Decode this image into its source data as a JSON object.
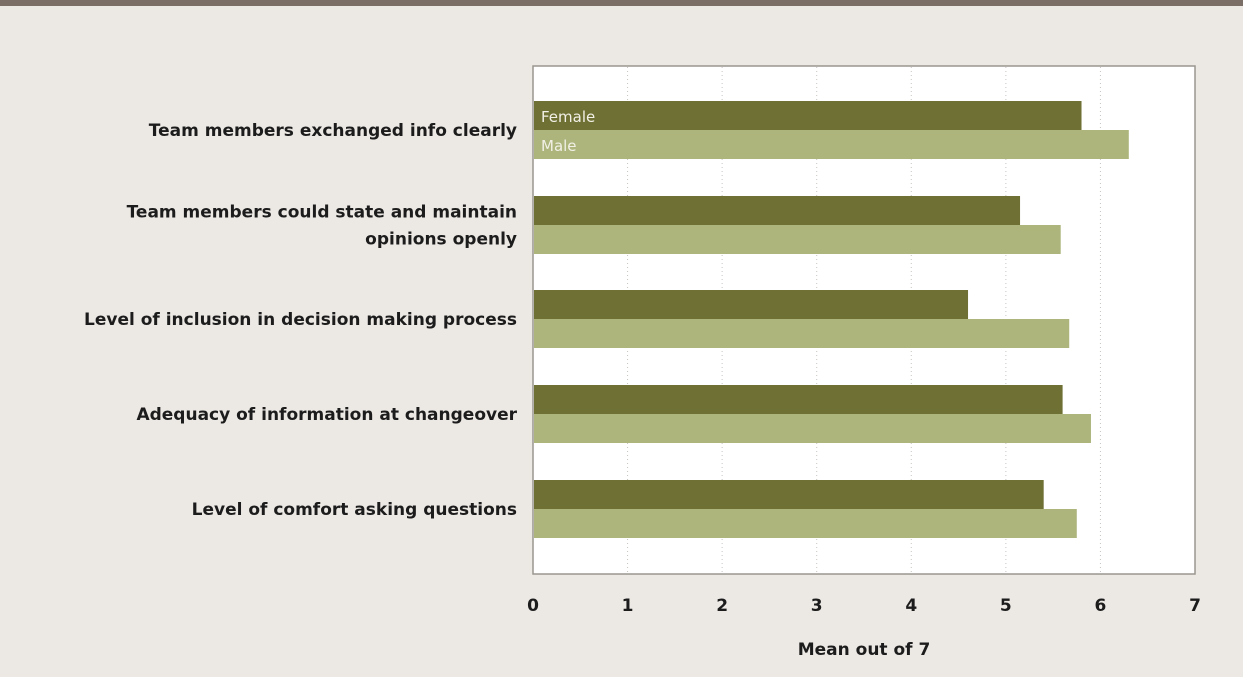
{
  "chart_data": {
    "type": "bar",
    "orientation": "horizontal",
    "categories": [
      [
        "Team members exchanged info clearly"
      ],
      [
        "Team members could state and maintain",
        "opinions openly"
      ],
      [
        "Level of inclusion in decision making process"
      ],
      [
        "Adequacy of information at changeover"
      ],
      [
        "Level of comfort asking questions"
      ]
    ],
    "series": [
      {
        "name": "Female",
        "color": "#6e7034",
        "values": [
          5.8,
          5.15,
          4.6,
          5.6,
          5.4
        ]
      },
      {
        "name": "Male",
        "color": "#adb57c",
        "values": [
          6.3,
          5.58,
          5.67,
          5.9,
          5.75
        ]
      }
    ],
    "xlabel": "Mean out of 7",
    "xlim": [
      0,
      7
    ],
    "xticks": [
      "0",
      "1",
      "2",
      "3",
      "4",
      "5",
      "6",
      "7"
    ],
    "grid": true,
    "legend": "inside first bar pair"
  }
}
